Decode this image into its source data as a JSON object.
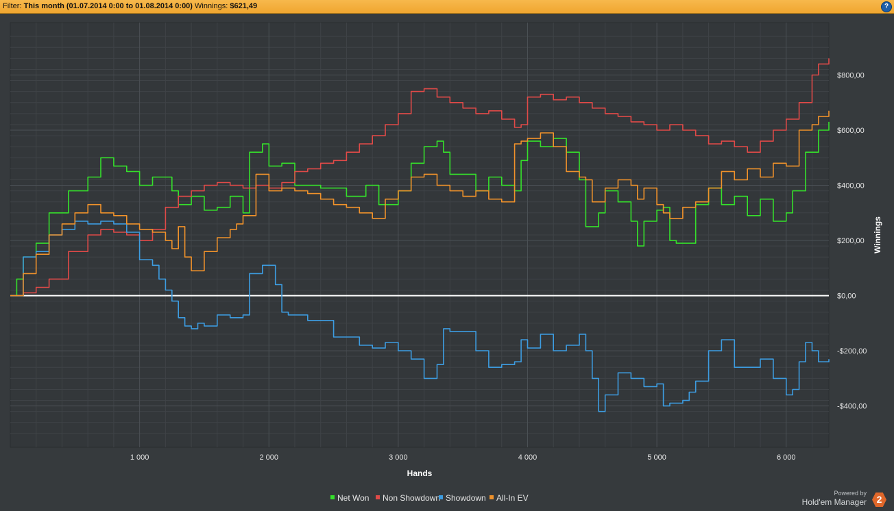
{
  "filter": {
    "label": "Filter:",
    "value": "This month (01.07.2014 0:00 to 01.08.2014 0:00)",
    "winnings_label": "Winnings:",
    "winnings_value": "$621,49"
  },
  "help_label": "?",
  "brand": {
    "powered": "Powered by",
    "name": "Hold'em Manager",
    "logo": "2"
  },
  "colors": {
    "net_won": "#35e02b",
    "non_showdown": "#e04a48",
    "showdown": "#3d9ce0",
    "all_in_ev": "#f0922b",
    "zero_line": "#ffffff"
  },
  "chart_data": {
    "type": "line",
    "title": "",
    "xlabel": "Hands",
    "ylabel": "Winnings",
    "xlim": [
      0,
      6330
    ],
    "ylim": [
      -550,
      990
    ],
    "xticks": [
      1000,
      2000,
      3000,
      4000,
      5000,
      6000
    ],
    "xtick_labels": [
      "1 000",
      "2 000",
      "3 000",
      "4 000",
      "5 000",
      "6 000"
    ],
    "yticks": [
      -400,
      -200,
      0,
      200,
      400,
      600,
      800
    ],
    "ytick_labels": [
      "-$400,00",
      "-$200,00",
      "$0,00",
      "$200,00",
      "$400,00",
      "$600,00",
      "$800,00"
    ],
    "grid": true,
    "legend": "bottom-center",
    "series": [
      {
        "name": "Net Won",
        "color": "#35e02b",
        "x": [
          0,
          50,
          100,
          200,
          300,
          450,
          600,
          700,
          800,
          900,
          1000,
          1100,
          1250,
          1300,
          1400,
          1500,
          1600,
          1700,
          1800,
          1850,
          1950,
          2000,
          2100,
          2200,
          2400,
          2600,
          2750,
          2850,
          3000,
          3100,
          3200,
          3300,
          3350,
          3400,
          3600,
          3700,
          3800,
          3900,
          3950,
          4000,
          4100,
          4200,
          4300,
          4400,
          4450,
          4550,
          4600,
          4700,
          4800,
          4850,
          4900,
          5000,
          5050,
          5100,
          5150,
          5300,
          5400,
          5500,
          5600,
          5700,
          5800,
          5900,
          6000,
          6050,
          6150,
          6250,
          6330
        ],
        "y": [
          0,
          60,
          140,
          190,
          300,
          380,
          430,
          500,
          470,
          450,
          400,
          430,
          380,
          330,
          360,
          310,
          320,
          360,
          300,
          520,
          550,
          470,
          480,
          400,
          390,
          360,
          400,
          330,
          380,
          480,
          540,
          560,
          520,
          440,
          380,
          430,
          400,
          380,
          490,
          560,
          540,
          570,
          520,
          420,
          250,
          300,
          380,
          340,
          270,
          180,
          270,
          310,
          320,
          200,
          190,
          330,
          390,
          330,
          360,
          290,
          350,
          270,
          300,
          380,
          520,
          600,
          630
        ]
      },
      {
        "name": "Non Showdown",
        "color": "#e04a48",
        "x": [
          0,
          100,
          200,
          300,
          450,
          600,
          700,
          800,
          900,
          1000,
          1100,
          1200,
          1300,
          1400,
          1500,
          1600,
          1700,
          1800,
          1900,
          2000,
          2100,
          2200,
          2300,
          2400,
          2500,
          2600,
          2700,
          2800,
          2900,
          3000,
          3100,
          3200,
          3300,
          3400,
          3500,
          3600,
          3700,
          3800,
          3900,
          3950,
          4000,
          4100,
          4200,
          4300,
          4400,
          4500,
          4600,
          4700,
          4800,
          4900,
          5000,
          5100,
          5200,
          5300,
          5400,
          5500,
          5600,
          5700,
          5800,
          5900,
          6000,
          6100,
          6200,
          6250,
          6330
        ],
        "y": [
          0,
          10,
          30,
          60,
          160,
          220,
          240,
          230,
          220,
          200,
          240,
          320,
          360,
          380,
          400,
          410,
          400,
          390,
          400,
          390,
          410,
          450,
          460,
          480,
          490,
          520,
          550,
          580,
          620,
          660,
          740,
          750,
          720,
          700,
          680,
          660,
          670,
          640,
          610,
          620,
          720,
          730,
          710,
          720,
          700,
          680,
          660,
          650,
          630,
          620,
          600,
          620,
          600,
          580,
          550,
          560,
          540,
          520,
          560,
          600,
          640,
          700,
          800,
          840,
          860
        ]
      },
      {
        "name": "Showdown",
        "color": "#3d9ce0",
        "x": [
          0,
          100,
          200,
          300,
          400,
          500,
          600,
          700,
          800,
          900,
          1000,
          1100,
          1150,
          1200,
          1250,
          1300,
          1350,
          1400,
          1450,
          1500,
          1600,
          1700,
          1800,
          1850,
          1950,
          2050,
          2100,
          2150,
          2300,
          2500,
          2700,
          2800,
          2900,
          3000,
          3100,
          3200,
          3300,
          3350,
          3400,
          3600,
          3700,
          3800,
          3900,
          3950,
          4000,
          4100,
          4200,
          4300,
          4400,
          4450,
          4500,
          4550,
          4600,
          4700,
          4800,
          4900,
          5000,
          5050,
          5100,
          5200,
          5250,
          5300,
          5400,
          5500,
          5600,
          5700,
          5800,
          5900,
          6000,
          6050,
          6100,
          6150,
          6200,
          6250,
          6330
        ],
        "y": [
          0,
          140,
          160,
          220,
          240,
          270,
          260,
          270,
          260,
          230,
          130,
          110,
          60,
          20,
          -20,
          -80,
          -110,
          -120,
          -100,
          -110,
          -70,
          -80,
          -70,
          80,
          110,
          40,
          -60,
          -70,
          -90,
          -150,
          -180,
          -190,
          -170,
          -200,
          -230,
          -300,
          -250,
          -120,
          -130,
          -200,
          -260,
          -250,
          -240,
          -160,
          -190,
          -140,
          -200,
          -180,
          -140,
          -200,
          -300,
          -420,
          -360,
          -280,
          -300,
          -330,
          -320,
          -400,
          -390,
          -380,
          -350,
          -310,
          -200,
          -160,
          -260,
          -260,
          -230,
          -300,
          -360,
          -340,
          -240,
          -170,
          -200,
          -240,
          -230
        ]
      },
      {
        "name": "All-In EV",
        "color": "#f0922b",
        "x": [
          0,
          100,
          200,
          300,
          400,
          500,
          600,
          700,
          800,
          900,
          1000,
          1100,
          1200,
          1250,
          1300,
          1350,
          1400,
          1500,
          1600,
          1700,
          1750,
          1800,
          1900,
          2000,
          2100,
          2200,
          2300,
          2400,
          2500,
          2600,
          2700,
          2800,
          2900,
          3000,
          3100,
          3200,
          3300,
          3400,
          3500,
          3600,
          3700,
          3800,
          3900,
          3950,
          4000,
          4100,
          4200,
          4300,
          4400,
          4450,
          4500,
          4600,
          4700,
          4800,
          4850,
          4900,
          5000,
          5050,
          5100,
          5200,
          5300,
          5400,
          5500,
          5600,
          5700,
          5800,
          5900,
          6000,
          6100,
          6200,
          6250,
          6330
        ],
        "y": [
          0,
          80,
          150,
          220,
          260,
          300,
          330,
          300,
          290,
          260,
          240,
          230,
          200,
          170,
          250,
          140,
          90,
          160,
          210,
          240,
          260,
          290,
          440,
          380,
          390,
          380,
          370,
          350,
          330,
          320,
          300,
          280,
          350,
          380,
          430,
          440,
          400,
          380,
          360,
          380,
          350,
          340,
          550,
          560,
          570,
          590,
          540,
          450,
          430,
          420,
          340,
          390,
          420,
          400,
          350,
          390,
          330,
          300,
          280,
          320,
          340,
          390,
          450,
          420,
          460,
          430,
          480,
          470,
          600,
          620,
          650,
          670
        ]
      }
    ]
  }
}
